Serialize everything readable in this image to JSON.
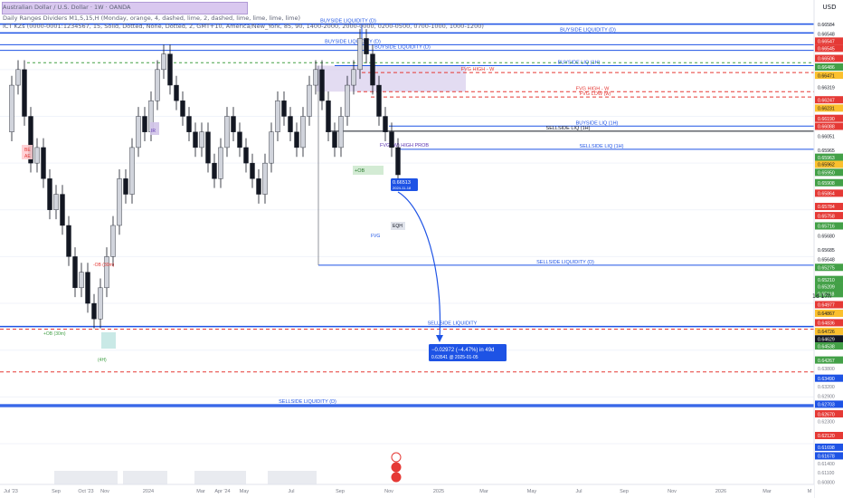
{
  "header": {
    "symbol_line": "Australian Dollar / U.S. Dollar · 1W · OANDA",
    "indicator_1": "Daily Ranges Dividers M1,5,15,H (Monday, orange, 4, dashed, lime, 2, dashed, lime, lime, lime, lime)",
    "indicator_2": "ICT KZs (0000-0001:1234567, 15, Solid, Dotted, None, Dotted, 2, GMT+10, America/New_York, 85, 90, 1400-2000, 2000-0000, 0200-0500, 0700-1000, 1000-1200)"
  },
  "price_axis": {
    "currency": "USD",
    "period": "1d 17h",
    "labels": [
      {
        "p": 0.66584,
        "bg": "#ffffff",
        "fg": "#131722",
        "label": "0.66584"
      },
      {
        "p": 0.66548,
        "bg": "#ffffff",
        "fg": "#131722",
        "label": "0.66548"
      },
      {
        "p": 0.66547,
        "bg": "#e53935",
        "fg": "#ffffff",
        "label": "0.66547"
      },
      {
        "p": 0.66545,
        "bg": "#e53935",
        "fg": "#ffffff",
        "label": "0.66545"
      },
      {
        "p": 0.66506,
        "bg": "#e53935",
        "fg": "#ffffff",
        "label": "0.66506"
      },
      {
        "p": 0.66486,
        "bg": "#43a047",
        "fg": "#ffffff",
        "label": "0.66486"
      },
      {
        "p": 0.66471,
        "bg": "#fbc02d",
        "fg": "#131722",
        "label": "0.66471"
      },
      {
        "p": 0.66319,
        "bg": "#ffffff",
        "fg": "#131722",
        "label": "0.66319"
      },
      {
        "p": 0.66247,
        "bg": "#e53935",
        "fg": "#ffffff",
        "label": "0.66247"
      },
      {
        "p": 0.66231,
        "bg": "#fbc02d",
        "fg": "#131722",
        "label": "0.66231"
      },
      {
        "p": 0.6619,
        "bg": "#e53935",
        "fg": "#ffffff",
        "label": "0.66190"
      },
      {
        "p": 0.66088,
        "bg": "#e53935",
        "fg": "#ffffff",
        "label": "0.66088"
      },
      {
        "p": 0.66051,
        "bg": "#ffffff",
        "fg": "#131722",
        "label": "0.66051"
      },
      {
        "p": 0.65965,
        "bg": "#ffffff",
        "fg": "#131722",
        "label": "0.65965"
      },
      {
        "p": 0.65963,
        "bg": "#43a047",
        "fg": "#ffffff",
        "label": "0.65963"
      },
      {
        "p": 0.65962,
        "bg": "#fbc02d",
        "fg": "#131722",
        "label": "0.65962"
      },
      {
        "p": 0.6595,
        "bg": "#43a047",
        "fg": "#ffffff",
        "label": "0.65950"
      },
      {
        "p": 0.65908,
        "bg": "#43a047",
        "fg": "#ffffff",
        "label": "0.65908"
      },
      {
        "p": 0.65864,
        "bg": "#e53935",
        "fg": "#ffffff",
        "label": "0.65864"
      },
      {
        "p": 0.65784,
        "bg": "#e53935",
        "fg": "#ffffff",
        "label": "0.65784"
      },
      {
        "p": 0.65758,
        "bg": "#e53935",
        "fg": "#ffffff",
        "label": "0.65758"
      },
      {
        "p": 0.65716,
        "bg": "#43a047",
        "fg": "#ffffff",
        "label": "0.65716"
      },
      {
        "p": 0.6568,
        "bg": "#ffffff",
        "fg": "#131722",
        "label": "0.65680"
      },
      {
        "p": 0.65685,
        "bg": "#ffffff",
        "fg": "#131722",
        "label": "0.65685"
      },
      {
        "p": 0.65648,
        "bg": "#ffffff",
        "fg": "#131722",
        "label": "0.65648"
      },
      {
        "p": 0.65275,
        "bg": "#43a047",
        "fg": "#ffffff",
        "label": "0.65275"
      },
      {
        "p": 0.6521,
        "bg": "#43a047",
        "fg": "#ffffff",
        "label": "0.65210"
      },
      {
        "p": 0.65209,
        "bg": "#43a047",
        "fg": "#ffffff",
        "label": "0.65209"
      },
      {
        "p": 0.65118,
        "bg": "#43a047",
        "fg": "#ffffff",
        "label": "0.65118"
      },
      {
        "p": 0.64977,
        "bg": "#e53935",
        "fg": "#ffffff",
        "label": "0.64977"
      },
      {
        "p": 0.64867,
        "bg": "#fbc02d",
        "fg": "#131722",
        "label": "0.64867"
      },
      {
        "p": 0.64836,
        "bg": "#e53935",
        "fg": "#ffffff",
        "label": "0.64836"
      },
      {
        "p": 0.64726,
        "bg": "#fbc02d",
        "fg": "#131722",
        "label": "0.64726"
      },
      {
        "p": 0.64629,
        "bg": "#131722",
        "fg": "#ffffff",
        "label": "0.64629"
      },
      {
        "p": 0.64538,
        "bg": "#43a047",
        "fg": "#ffffff",
        "label": "0.64538"
      },
      {
        "p": 0.64267,
        "bg": "#43a047",
        "fg": "#ffffff",
        "label": "0.64267"
      },
      {
        "p": 0.638,
        "bg": "#ffffff",
        "fg": "#787b86",
        "label": "0.63800"
      },
      {
        "p": 0.6349,
        "bg": "#1e53e5",
        "fg": "#ffffff",
        "label": "0.63490"
      },
      {
        "p": 0.632,
        "bg": "#ffffff",
        "fg": "#787b86",
        "label": "0.63200"
      },
      {
        "p": 0.629,
        "bg": "#ffffff",
        "fg": "#787b86",
        "label": "0.62900"
      },
      {
        "p": 0.62703,
        "bg": "#1e53e5",
        "fg": "#ffffff",
        "label": "0.62703"
      },
      {
        "p": 0.6267,
        "bg": "#e53935",
        "fg": "#ffffff",
        "label": "0.62670"
      },
      {
        "p": 0.623,
        "bg": "#ffffff",
        "fg": "#787b86",
        "label": "0.62300"
      },
      {
        "p": 0.6212,
        "bg": "#e53935",
        "fg": "#ffffff",
        "label": "0.62120"
      },
      {
        "p": 0.61698,
        "bg": "#1e53e5",
        "fg": "#ffffff",
        "label": "0.61698"
      },
      {
        "p": 0.61678,
        "bg": "#1e53e5",
        "fg": "#ffffff",
        "label": "0.61678"
      },
      {
        "p": 0.614,
        "bg": "#ffffff",
        "fg": "#787b86",
        "label": "0.61400"
      },
      {
        "p": 0.611,
        "bg": "#ffffff",
        "fg": "#787b86",
        "label": "0.61100"
      },
      {
        "p": 0.608,
        "bg": "#ffffff",
        "fg": "#787b86",
        "label": "0.60800"
      }
    ]
  },
  "time_axis": [
    "Jul '23",
    "Sep",
    "Oct '23",
    "Nov",
    "2024",
    "Mar",
    "Apr '24",
    "May",
    "Jul",
    "Sep",
    "Nov",
    "2025",
    "Mar",
    "May",
    "Jul",
    "Sep",
    "Nov",
    "2026",
    "Mar",
    "M"
  ],
  "levels": [
    {
      "p": 0.66584,
      "label": "BUYSIDE LIQUIDITY (D)",
      "color": "#1e53e5",
      "style": "solid"
    },
    {
      "p": 0.66471,
      "label": "BUYSIDE LIQUIDITY (D)",
      "color": "#1e53e5",
      "style": "solid"
    },
    {
      "p": 0.66319,
      "label": "BUYSIDE LIQUIDITY (D)",
      "color": "#1e53e5",
      "style": "solid"
    },
    {
      "p": 0.66247,
      "label": "BUYSIDE LIQUIDITY (D)",
      "color": "#1e53e5",
      "style": "solid"
    },
    {
      "p": 0.66051,
      "label": "BUYSIDE LIQ (1H)",
      "color": "#1e53e5",
      "style": "solid"
    },
    {
      "p": 0.65962,
      "label": "FVG HIGH - W",
      "color": "#e53935",
      "style": "dashed"
    },
    {
      "p": 0.65716,
      "label": "FVG HIGH - W",
      "color": "#e53935",
      "style": "dashed"
    },
    {
      "p": 0.65648,
      "label": "FVG LOW (w)",
      "color": "#e53935",
      "style": "dashed"
    },
    {
      "p": 0.65275,
      "label": "BUYSIDE LIQ (1H)",
      "color": "#1e53e5",
      "style": "solid"
    },
    {
      "p": 0.65209,
      "label": "SELLSIDE LIQ (1H)",
      "color": "#131722",
      "style": "solid"
    },
    {
      "p": 0.64977,
      "label": "SELLSIDE LIQ (1H)",
      "color": "#1e53e5",
      "style": "solid"
    },
    {
      "p": 0.6349,
      "label": "SELLSIDE LIQUIDITY (D)",
      "color": "#1e53e5",
      "style": "solid"
    },
    {
      "p": 0.62703,
      "label": "SELLSIDE LIQUIDITY",
      "color": "#1e53e5",
      "style": "solid"
    },
    {
      "p": 0.6212,
      "label": "",
      "color": "#e53935",
      "style": "dashed"
    },
    {
      "p": 0.61698,
      "label": "SELLSIDE LIQUIDITY (D)",
      "color": "#1e53e5",
      "style": "solid"
    }
  ],
  "annotations": {
    "fvg_box": "FVG (W) HIGH PROB",
    "ob_label_1": "-OB (30m)",
    "ob_label_2": "+OB (30m)",
    "ob_label_3": "+OB",
    "h4_label": "(4H)",
    "fvg_small": "FVG",
    "eqh": "EQH",
    "be_ae": [
      "BE",
      "AE"
    ],
    "ir": "IR"
  },
  "price_marker": {
    "price": "0.66513",
    "date": "2024-11-18"
  },
  "projection": {
    "line1": "−0.02972 (−4.47%) in 49d",
    "line2": "0.63541 @ 2025-01-05"
  }
}
